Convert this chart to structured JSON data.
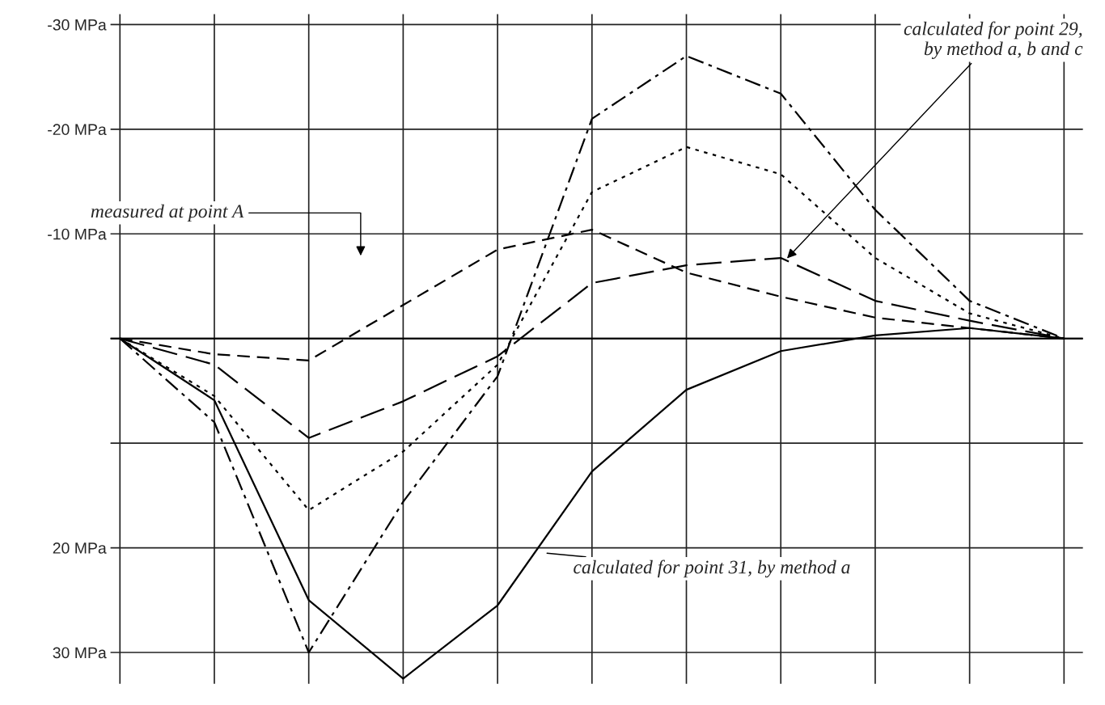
{
  "chart_data": {
    "type": "line",
    "categories": [
      null,
      null,
      null,
      null,
      null,
      null,
      null,
      null,
      null,
      null,
      null
    ],
    "series": [
      {
        "color": "#000000",
        "line_style": "solid",
        "values": [
          0,
          5.9,
          25,
          32.5,
          25.5,
          12.7,
          4.9,
          1.2,
          -0.3,
          -1,
          0
        ]
      },
      {
        "color": "#000000",
        "line_style": "dashdot",
        "values": [
          0,
          8,
          30,
          15.6,
          3.6,
          -21,
          -27,
          -23.4,
          -12.3,
          -3.6,
          0
        ]
      },
      {
        "color": "#000000",
        "line_style": "dotted",
        "values": [
          0,
          5.5,
          16.4,
          10.8,
          2.5,
          -14,
          -18.3,
          -15.7,
          -7.7,
          -2.4,
          0
        ]
      },
      {
        "color": "#000000",
        "line_style": "longdash",
        "values": [
          0,
          2.5,
          9.5,
          6,
          1.7,
          -5.3,
          -7,
          -7.7,
          -3.6,
          -1.7,
          0
        ]
      },
      {
        "color": "#000000",
        "line_style": "dashed",
        "values": [
          0,
          1.5,
          2.1,
          -3.2,
          -8.5,
          -10.4,
          -6.3,
          -4,
          -2,
          -1,
          0
        ]
      }
    ],
    "ylim": [
      33,
      -31
    ],
    "yticks": [
      {
        "value": -30,
        "label": "-30 MPa"
      },
      {
        "value": -20,
        "label": "-20 MPa"
      },
      {
        "value": -10,
        "label": "-10 MPa"
      },
      {
        "value": 0,
        "label": null
      },
      {
        "value": 10,
        "label": null
      },
      {
        "value": 20,
        "label": "20 MPa"
      },
      {
        "value": 30,
        "label": "30 MPa"
      }
    ],
    "grid": true,
    "marker": "none",
    "annotations": [
      "calculated for point 29,\nby method a, b and c",
      "measured at point A",
      "calculated for point 31, by method a"
    ]
  }
}
